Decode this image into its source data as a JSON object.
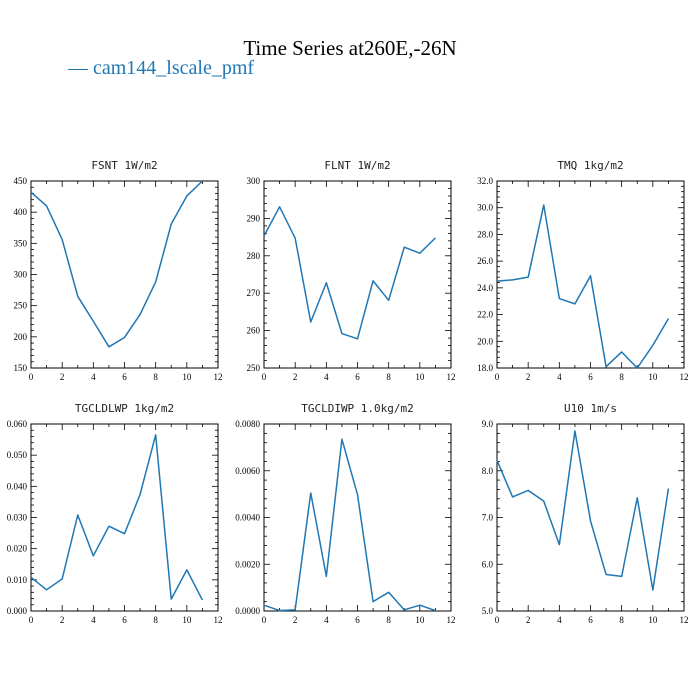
{
  "figure": {
    "title": "Time Series at260E,-26N",
    "legend_label": "cam144_lscale_pmf",
    "legend_marker": "—",
    "line_color": "#1f77b4"
  },
  "chart_data": [
    {
      "type": "line",
      "title": "FSNT  1W/m2",
      "x": [
        0,
        1,
        2,
        3,
        4,
        5,
        6,
        7,
        8,
        9,
        10,
        11
      ],
      "xlim": [
        0,
        12
      ],
      "xticks": [
        0,
        2,
        4,
        6,
        8,
        10,
        12
      ],
      "ylim": [
        150,
        450
      ],
      "yticks": [
        150,
        200,
        250,
        300,
        350,
        400,
        450
      ],
      "ytick_labels": [
        "150",
        "200",
        "250",
        "300",
        "350",
        "400",
        "450"
      ],
      "series": [
        {
          "values": [
            432,
            410,
            356,
            265,
            225,
            184,
            199,
            236,
            288,
            381,
            426,
            450
          ]
        }
      ]
    },
    {
      "type": "line",
      "title": "FLNT  1W/m2",
      "x": [
        0,
        1,
        2,
        3,
        4,
        5,
        6,
        7,
        8,
        9,
        10,
        11
      ],
      "xlim": [
        0,
        12
      ],
      "xticks": [
        0,
        2,
        4,
        6,
        8,
        10,
        12
      ],
      "ylim": [
        250,
        300
      ],
      "yticks": [
        250,
        260,
        270,
        280,
        290,
        300
      ],
      "ytick_labels": [
        "250",
        "260",
        "270",
        "280",
        "290",
        "300"
      ],
      "series": [
        {
          "values": [
            285.3,
            293.1,
            284.7,
            262.3,
            272.8,
            259.2,
            257.8,
            273.3,
            268.1,
            282.3,
            280.7,
            284.8
          ]
        }
      ]
    },
    {
      "type": "line",
      "title": "TMQ  1kg/m2",
      "x": [
        0,
        1,
        2,
        3,
        4,
        5,
        6,
        7,
        8,
        9,
        10,
        11
      ],
      "xlim": [
        0,
        12
      ],
      "xticks": [
        0,
        2,
        4,
        6,
        8,
        10,
        12
      ],
      "ylim": [
        18,
        32
      ],
      "yticks": [
        18,
        20,
        22,
        24,
        26,
        28,
        30,
        32
      ],
      "ytick_labels": [
        "18.0",
        "20.0",
        "22.0",
        "24.0",
        "26.0",
        "28.0",
        "30.0",
        "32.0"
      ],
      "series": [
        {
          "values": [
            24.5,
            24.6,
            24.8,
            30.2,
            23.2,
            22.8,
            24.9,
            18.1,
            19.2,
            18.0,
            19.7,
            21.7
          ]
        }
      ]
    },
    {
      "type": "line",
      "title": "TGCLDLWP  1kg/m2",
      "x": [
        0,
        1,
        2,
        3,
        4,
        5,
        6,
        7,
        8,
        9,
        10,
        11
      ],
      "xlim": [
        0,
        12
      ],
      "xticks": [
        0,
        2,
        4,
        6,
        8,
        10,
        12
      ],
      "ylim": [
        0,
        0.06
      ],
      "yticks": [
        0,
        0.01,
        0.02,
        0.03,
        0.04,
        0.05,
        0.06
      ],
      "ytick_labels": [
        "0.000",
        "0.010",
        "0.020",
        "0.030",
        "0.040",
        "0.050",
        "0.060"
      ],
      "series": [
        {
          "values": [
            0.0108,
            0.0068,
            0.0103,
            0.0308,
            0.0177,
            0.0272,
            0.0248,
            0.0374,
            0.0565,
            0.0038,
            0.0132,
            0.0035
          ]
        }
      ]
    },
    {
      "type": "line",
      "title": "TGCLDIWP  1.0kg/m2",
      "x": [
        0,
        1,
        2,
        3,
        4,
        5,
        6,
        7,
        8,
        9,
        10,
        11
      ],
      "xlim": [
        0,
        12
      ],
      "xticks": [
        0,
        2,
        4,
        6,
        8,
        10,
        12
      ],
      "ylim": [
        0,
        0.008
      ],
      "yticks": [
        0,
        0.002,
        0.004,
        0.006,
        0.008
      ],
      "ytick_labels": [
        "0.0000",
        "0.0020",
        "0.0040",
        "0.0060",
        "0.0080"
      ],
      "series": [
        {
          "values": [
            0.00025,
            2e-05,
            5e-05,
            0.00505,
            0.00148,
            0.00735,
            0.00498,
            0.0004,
            0.0008,
            5e-05,
            0.00025,
            2e-05
          ]
        }
      ]
    },
    {
      "type": "line",
      "title": "U10  1m/s",
      "x": [
        0,
        1,
        2,
        3,
        4,
        5,
        6,
        7,
        8,
        9,
        10,
        11
      ],
      "xlim": [
        0,
        12
      ],
      "xticks": [
        0,
        2,
        4,
        6,
        8,
        10,
        12
      ],
      "ylim": [
        5,
        9
      ],
      "yticks": [
        5,
        6,
        7,
        8,
        9
      ],
      "ytick_labels": [
        "5.0",
        "6.0",
        "7.0",
        "8.0",
        "9.0"
      ],
      "series": [
        {
          "values": [
            8.22,
            7.44,
            7.58,
            7.35,
            6.42,
            8.85,
            6.93,
            5.78,
            5.74,
            7.42,
            5.45,
            7.62
          ]
        }
      ]
    }
  ]
}
